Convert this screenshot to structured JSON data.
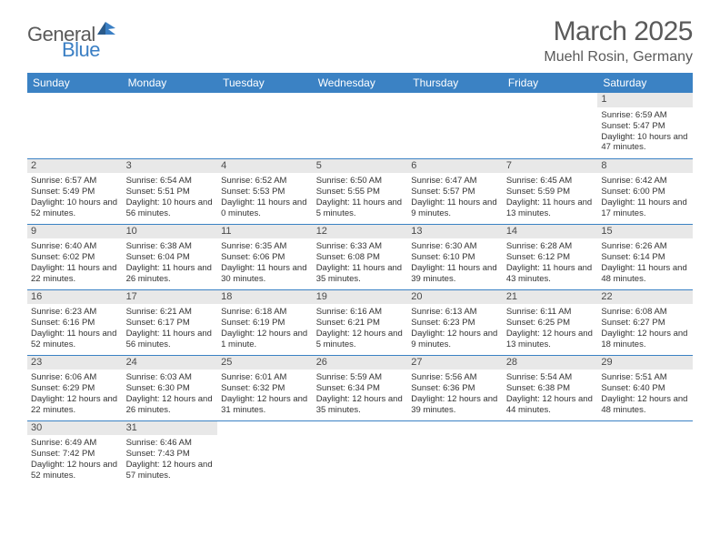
{
  "logo": {
    "part1": "General",
    "part2": "Blue"
  },
  "title": "March 2025",
  "location": "Muehl Rosin, Germany",
  "colors": {
    "header_bg": "#3b82c4",
    "header_fg": "#ffffff",
    "day_bg": "#e8e8e8",
    "border": "#3b82c4",
    "text": "#333333",
    "logo_gray": "#5a5a5a",
    "logo_blue": "#3b7fc4"
  },
  "weekdays": [
    "Sunday",
    "Monday",
    "Tuesday",
    "Wednesday",
    "Thursday",
    "Friday",
    "Saturday"
  ],
  "weeks": [
    [
      null,
      null,
      null,
      null,
      null,
      null,
      {
        "n": "1",
        "sr": "6:59 AM",
        "ss": "5:47 PM",
        "dh": "10",
        "dm": "47"
      }
    ],
    [
      {
        "n": "2",
        "sr": "6:57 AM",
        "ss": "5:49 PM",
        "dh": "10",
        "dm": "52"
      },
      {
        "n": "3",
        "sr": "6:54 AM",
        "ss": "5:51 PM",
        "dh": "10",
        "dm": "56"
      },
      {
        "n": "4",
        "sr": "6:52 AM",
        "ss": "5:53 PM",
        "dh": "11",
        "dm": "0"
      },
      {
        "n": "5",
        "sr": "6:50 AM",
        "ss": "5:55 PM",
        "dh": "11",
        "dm": "5"
      },
      {
        "n": "6",
        "sr": "6:47 AM",
        "ss": "5:57 PM",
        "dh": "11",
        "dm": "9"
      },
      {
        "n": "7",
        "sr": "6:45 AM",
        "ss": "5:59 PM",
        "dh": "11",
        "dm": "13"
      },
      {
        "n": "8",
        "sr": "6:42 AM",
        "ss": "6:00 PM",
        "dh": "11",
        "dm": "17"
      }
    ],
    [
      {
        "n": "9",
        "sr": "6:40 AM",
        "ss": "6:02 PM",
        "dh": "11",
        "dm": "22"
      },
      {
        "n": "10",
        "sr": "6:38 AM",
        "ss": "6:04 PM",
        "dh": "11",
        "dm": "26"
      },
      {
        "n": "11",
        "sr": "6:35 AM",
        "ss": "6:06 PM",
        "dh": "11",
        "dm": "30"
      },
      {
        "n": "12",
        "sr": "6:33 AM",
        "ss": "6:08 PM",
        "dh": "11",
        "dm": "35"
      },
      {
        "n": "13",
        "sr": "6:30 AM",
        "ss": "6:10 PM",
        "dh": "11",
        "dm": "39"
      },
      {
        "n": "14",
        "sr": "6:28 AM",
        "ss": "6:12 PM",
        "dh": "11",
        "dm": "43"
      },
      {
        "n": "15",
        "sr": "6:26 AM",
        "ss": "6:14 PM",
        "dh": "11",
        "dm": "48"
      }
    ],
    [
      {
        "n": "16",
        "sr": "6:23 AM",
        "ss": "6:16 PM",
        "dh": "11",
        "dm": "52"
      },
      {
        "n": "17",
        "sr": "6:21 AM",
        "ss": "6:17 PM",
        "dh": "11",
        "dm": "56"
      },
      {
        "n": "18",
        "sr": "6:18 AM",
        "ss": "6:19 PM",
        "dh": "12",
        "dm": "1",
        "dmlabel": "minute"
      },
      {
        "n": "19",
        "sr": "6:16 AM",
        "ss": "6:21 PM",
        "dh": "12",
        "dm": "5"
      },
      {
        "n": "20",
        "sr": "6:13 AM",
        "ss": "6:23 PM",
        "dh": "12",
        "dm": "9"
      },
      {
        "n": "21",
        "sr": "6:11 AM",
        "ss": "6:25 PM",
        "dh": "12",
        "dm": "13"
      },
      {
        "n": "22",
        "sr": "6:08 AM",
        "ss": "6:27 PM",
        "dh": "12",
        "dm": "18"
      }
    ],
    [
      {
        "n": "23",
        "sr": "6:06 AM",
        "ss": "6:29 PM",
        "dh": "12",
        "dm": "22"
      },
      {
        "n": "24",
        "sr": "6:03 AM",
        "ss": "6:30 PM",
        "dh": "12",
        "dm": "26"
      },
      {
        "n": "25",
        "sr": "6:01 AM",
        "ss": "6:32 PM",
        "dh": "12",
        "dm": "31"
      },
      {
        "n": "26",
        "sr": "5:59 AM",
        "ss": "6:34 PM",
        "dh": "12",
        "dm": "35"
      },
      {
        "n": "27",
        "sr": "5:56 AM",
        "ss": "6:36 PM",
        "dh": "12",
        "dm": "39"
      },
      {
        "n": "28",
        "sr": "5:54 AM",
        "ss": "6:38 PM",
        "dh": "12",
        "dm": "44"
      },
      {
        "n": "29",
        "sr": "5:51 AM",
        "ss": "6:40 PM",
        "dh": "12",
        "dm": "48"
      }
    ],
    [
      {
        "n": "30",
        "sr": "6:49 AM",
        "ss": "7:42 PM",
        "dh": "12",
        "dm": "52"
      },
      {
        "n": "31",
        "sr": "6:46 AM",
        "ss": "7:43 PM",
        "dh": "12",
        "dm": "57"
      },
      null,
      null,
      null,
      null,
      null
    ]
  ],
  "labels": {
    "sunrise": "Sunrise:",
    "sunset": "Sunset:",
    "daylight_prefix": "Daylight:",
    "hours_word": "hours",
    "and_word": "and",
    "minutes_word": "minutes."
  }
}
